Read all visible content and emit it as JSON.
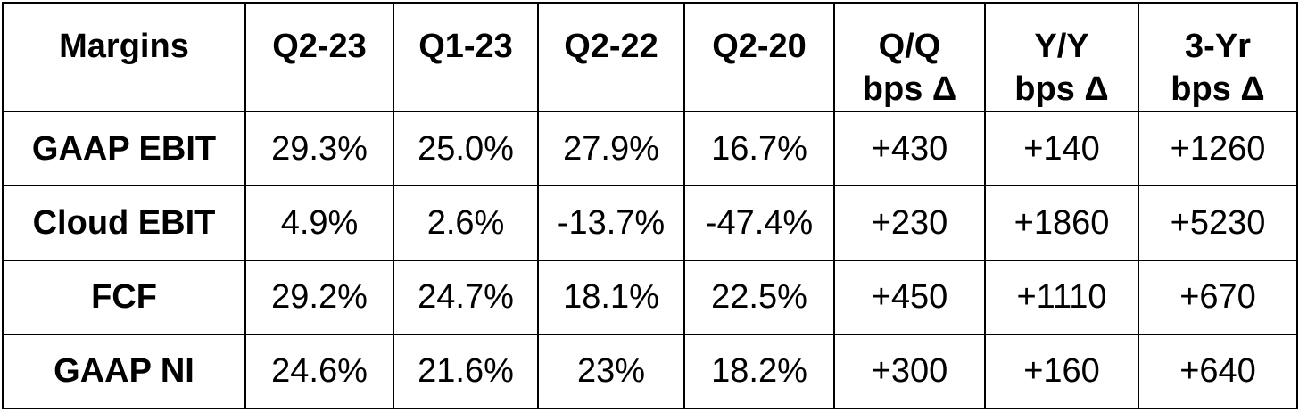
{
  "table": {
    "headers": [
      [
        "Margins"
      ],
      [
        "Q2-23"
      ],
      [
        "Q1-23"
      ],
      [
        "Q2-22"
      ],
      [
        "Q2-20"
      ],
      [
        "Q/Q",
        "bps Δ"
      ],
      [
        "Y/Y",
        "bps Δ"
      ],
      [
        "3-Yr",
        "bps Δ"
      ]
    ],
    "rows": [
      {
        "label": "GAAP EBIT",
        "values": [
          "29.3%",
          "25.0%",
          "27.9%",
          "16.7%",
          "+430",
          "+140",
          "+1260"
        ]
      },
      {
        "label": "Cloud EBIT",
        "values": [
          "4.9%",
          "2.6%",
          "-13.7%",
          "-47.4%",
          "+230",
          "+1860",
          "+5230"
        ]
      },
      {
        "label": "FCF",
        "values": [
          "29.2%",
          "24.7%",
          "18.1%",
          "22.5%",
          "+450",
          "+1110",
          "+670"
        ]
      },
      {
        "label": "GAAP NI",
        "values": [
          "24.6%",
          "21.6%",
          "23%",
          "18.2%",
          "+300",
          "+160",
          "+640"
        ]
      }
    ]
  }
}
